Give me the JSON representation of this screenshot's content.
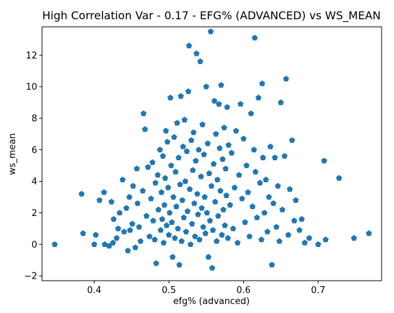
{
  "chart_data": {
    "type": "scatter",
    "title": "High Correlation Var - 0.17 - EFG% (ADVANCED) vs WS_MEAN",
    "xlabel": "efg% (advanced)",
    "ylabel": "ws_mean",
    "xlim": [
      0.33,
      0.785
    ],
    "ylim": [
      -2.3,
      13.8
    ],
    "x_ticks": [
      0.4,
      0.5,
      0.6,
      0.7
    ],
    "y_ticks": [
      -2,
      0,
      2,
      4,
      6,
      8,
      10,
      12
    ],
    "x_tick_labels": [
      "0.4",
      "0.5",
      "0.6",
      "0.7"
    ],
    "y_tick_labels": [
      "−2",
      "0",
      "2",
      "4",
      "6",
      "8",
      "10",
      "12"
    ],
    "grid": false,
    "marker": "pentagon",
    "color": "#1f77b4",
    "series": [
      {
        "points": [
          [
            0.347,
            0.0
          ],
          [
            0.383,
            3.2
          ],
          [
            0.385,
            0.7
          ],
          [
            0.4,
            0.0
          ],
          [
            0.402,
            0.6
          ],
          [
            0.407,
            2.8
          ],
          [
            0.413,
            3.3
          ],
          [
            0.414,
            0.0
          ],
          [
            0.42,
            -0.1
          ],
          [
            0.423,
            2.7
          ],
          [
            0.425,
            0.1
          ],
          [
            0.426,
            1.6
          ],
          [
            0.43,
            0.4
          ],
          [
            0.432,
            1.0
          ],
          [
            0.434,
            2.0
          ],
          [
            0.438,
            4.1
          ],
          [
            0.44,
            0.8
          ],
          [
            0.443,
            2.3
          ],
          [
            0.445,
            -0.4
          ],
          [
            0.447,
            3.0
          ],
          [
            0.448,
            0.9
          ],
          [
            0.451,
            1.3
          ],
          [
            0.452,
            3.7
          ],
          [
            0.455,
            -0.2
          ],
          [
            0.457,
            4.8
          ],
          [
            0.458,
            2.6
          ],
          [
            0.46,
            1.1
          ],
          [
            0.462,
            0.2
          ],
          [
            0.465,
            3.4
          ],
          [
            0.466,
            8.3
          ],
          [
            0.468,
            7.3
          ],
          [
            0.47,
            1.8
          ],
          [
            0.472,
            4.9
          ],
          [
            0.474,
            0.5
          ],
          [
            0.476,
            2.9
          ],
          [
            0.478,
            5.2
          ],
          [
            0.479,
            1.5
          ],
          [
            0.481,
            0.3
          ],
          [
            0.482,
            3.9
          ],
          [
            0.483,
            -1.2
          ],
          [
            0.485,
            4.4
          ],
          [
            0.486,
            2.2
          ],
          [
            0.488,
            6.0
          ],
          [
            0.489,
            0.9
          ],
          [
            0.49,
            3.3
          ],
          [
            0.491,
            1.6
          ],
          [
            0.492,
            5.6
          ],
          [
            0.493,
            0.1
          ],
          [
            0.494,
            2.5
          ],
          [
            0.495,
            4.2
          ],
          [
            0.496,
            7.2
          ],
          [
            0.497,
            1.2
          ],
          [
            0.498,
            6.5
          ],
          [
            0.499,
            3.6
          ],
          [
            0.5,
            0.6
          ],
          [
            0.501,
            2.0
          ],
          [
            0.502,
            9.3
          ],
          [
            0.503,
            5.0
          ],
          [
            0.504,
            1.4
          ],
          [
            0.505,
            -0.8
          ],
          [
            0.506,
            3.0
          ],
          [
            0.507,
            6.8
          ],
          [
            0.508,
            0.4
          ],
          [
            0.509,
            4.6
          ],
          [
            0.51,
            2.4
          ],
          [
            0.511,
            7.7
          ],
          [
            0.512,
            1.0
          ],
          [
            0.513,
            5.5
          ],
          [
            0.514,
            -1.3
          ],
          [
            0.515,
            3.8
          ],
          [
            0.516,
            9.4
          ],
          [
            0.517,
            0.2
          ],
          [
            0.518,
            2.8
          ],
          [
            0.519,
            6.2
          ],
          [
            0.52,
            1.7
          ],
          [
            0.521,
            7.9
          ],
          [
            0.522,
            4.0
          ],
          [
            0.523,
            0.8
          ],
          [
            0.524,
            5.9
          ],
          [
            0.525,
            2.1
          ],
          [
            0.526,
            9.7
          ],
          [
            0.527,
            12.6
          ],
          [
            0.528,
            3.5
          ],
          [
            0.529,
            0.0
          ],
          [
            0.53,
            6.6
          ],
          [
            0.531,
            1.3
          ],
          [
            0.532,
            4.7
          ],
          [
            0.533,
            7.1
          ],
          [
            0.534,
            2.6
          ],
          [
            0.535,
            0.5
          ],
          [
            0.536,
            5.3
          ],
          [
            0.537,
            12.1
          ],
          [
            0.538,
            3.2
          ],
          [
            0.539,
            1.9
          ],
          [
            0.54,
            6.0
          ],
          [
            0.541,
            0.3
          ],
          [
            0.542,
            11.6
          ],
          [
            0.543,
            4.3
          ],
          [
            0.544,
            2.3
          ],
          [
            0.545,
            7.6
          ],
          [
            0.546,
            1.1
          ],
          [
            0.547,
            5.7
          ],
          [
            0.548,
            3.0
          ],
          [
            0.549,
            0.7
          ],
          [
            0.55,
            10.0
          ],
          [
            0.551,
            2.0
          ],
          [
            0.552,
            6.4
          ],
          [
            0.553,
            -0.8
          ],
          [
            0.554,
            4.5
          ],
          [
            0.555,
            1.5
          ],
          [
            0.556,
            13.5
          ],
          [
            0.557,
            3.7
          ],
          [
            0.558,
            -1.5
          ],
          [
            0.559,
            0.9
          ],
          [
            0.56,
            5.1
          ],
          [
            0.561,
            9.1
          ],
          [
            0.562,
            2.7
          ],
          [
            0.563,
            7.0
          ],
          [
            0.564,
            0.2
          ],
          [
            0.565,
            4.1
          ],
          [
            0.566,
            1.8
          ],
          [
            0.567,
            8.9
          ],
          [
            0.568,
            6.1
          ],
          [
            0.569,
            3.4
          ],
          [
            0.57,
            10.1
          ],
          [
            0.571,
            0.6
          ],
          [
            0.572,
            5.4
          ],
          [
            0.573,
            2.2
          ],
          [
            0.574,
            7.4
          ],
          [
            0.575,
            1.2
          ],
          [
            0.576,
            4.8
          ],
          [
            0.577,
            3.1
          ],
          [
            0.578,
            8.7
          ],
          [
            0.579,
            0.4
          ],
          [
            0.58,
            6.3
          ],
          [
            0.582,
            2.5
          ],
          [
            0.584,
            5.8
          ],
          [
            0.586,
            1.0
          ],
          [
            0.588,
            3.6
          ],
          [
            0.59,
            7.2
          ],
          [
            0.592,
            0.1
          ],
          [
            0.594,
            4.4
          ],
          [
            0.596,
            8.9
          ],
          [
            0.598,
            2.9
          ],
          [
            0.6,
            6.7
          ],
          [
            0.602,
            1.4
          ],
          [
            0.604,
            5.0
          ],
          [
            0.606,
            3.3
          ],
          [
            0.608,
            0.5
          ],
          [
            0.61,
            8.3
          ],
          [
            0.612,
            2.4
          ],
          [
            0.614,
            6.0
          ],
          [
            0.615,
            13.1
          ],
          [
            0.616,
            4.6
          ],
          [
            0.618,
            1.7
          ],
          [
            0.62,
            9.3
          ],
          [
            0.622,
            3.9
          ],
          [
            0.624,
            0.3
          ],
          [
            0.625,
            10.2
          ],
          [
            0.626,
            5.5
          ],
          [
            0.628,
            2.0
          ],
          [
            0.63,
            4.1
          ],
          [
            0.632,
            0.8
          ],
          [
            0.634,
            3.0
          ],
          [
            0.636,
            6.2
          ],
          [
            0.638,
            -1.3
          ],
          [
            0.64,
            2.6
          ],
          [
            0.642,
            5.5
          ],
          [
            0.644,
            1.1
          ],
          [
            0.646,
            3.7
          ],
          [
            0.648,
            0.2
          ],
          [
            0.65,
            9.0
          ],
          [
            0.652,
            2.2
          ],
          [
            0.655,
            5.6
          ],
          [
            0.657,
            10.5
          ],
          [
            0.66,
            0.6
          ],
          [
            0.662,
            3.5
          ],
          [
            0.665,
            6.6
          ],
          [
            0.668,
            1.5
          ],
          [
            0.67,
            2.8
          ],
          [
            0.675,
            0.9
          ],
          [
            0.678,
            1.6
          ],
          [
            0.682,
            0.1
          ],
          [
            0.688,
            0.4
          ],
          [
            0.7,
            0.0
          ],
          [
            0.708,
            5.3
          ],
          [
            0.71,
            0.3
          ],
          [
            0.728,
            4.2
          ],
          [
            0.748,
            0.4
          ],
          [
            0.768,
            0.7
          ]
        ]
      }
    ]
  }
}
